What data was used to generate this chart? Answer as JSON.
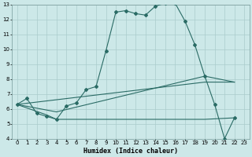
{
  "xlabel": "Humidex (Indice chaleur)",
  "bg_color": "#cce8e8",
  "grid_color": "#aacccc",
  "line_color": "#2a6b65",
  "xlim": [
    -0.5,
    23.5
  ],
  "ylim": [
    4,
    13
  ],
  "xticks": [
    0,
    1,
    2,
    3,
    4,
    5,
    6,
    7,
    8,
    9,
    10,
    11,
    12,
    13,
    14,
    15,
    16,
    17,
    18,
    19,
    20,
    21,
    22,
    23
  ],
  "yticks": [
    4,
    5,
    6,
    7,
    8,
    9,
    10,
    11,
    12,
    13
  ],
  "line1_x": [
    0,
    1,
    2,
    3,
    4,
    5,
    6,
    7,
    8,
    9,
    10,
    11,
    12,
    13,
    14,
    15,
    16,
    17,
    18,
    19,
    20,
    21,
    22
  ],
  "line1_y": [
    6.3,
    6.7,
    5.7,
    5.5,
    5.3,
    6.2,
    6.4,
    7.3,
    7.5,
    9.9,
    12.5,
    12.6,
    12.4,
    12.3,
    12.9,
    13.1,
    13.1,
    11.9,
    10.3,
    8.2,
    6.3,
    4.0,
    5.4
  ],
  "line2_x": [
    0,
    3,
    4,
    10,
    19,
    22
  ],
  "line2_y": [
    6.3,
    5.6,
    5.3,
    5.3,
    5.3,
    5.4
  ],
  "line3_x": [
    0,
    4,
    19,
    22
  ],
  "line3_y": [
    6.3,
    5.8,
    8.2,
    7.8
  ],
  "line4_x": [
    0,
    19,
    22
  ],
  "line4_y": [
    6.3,
    7.8,
    7.8
  ]
}
